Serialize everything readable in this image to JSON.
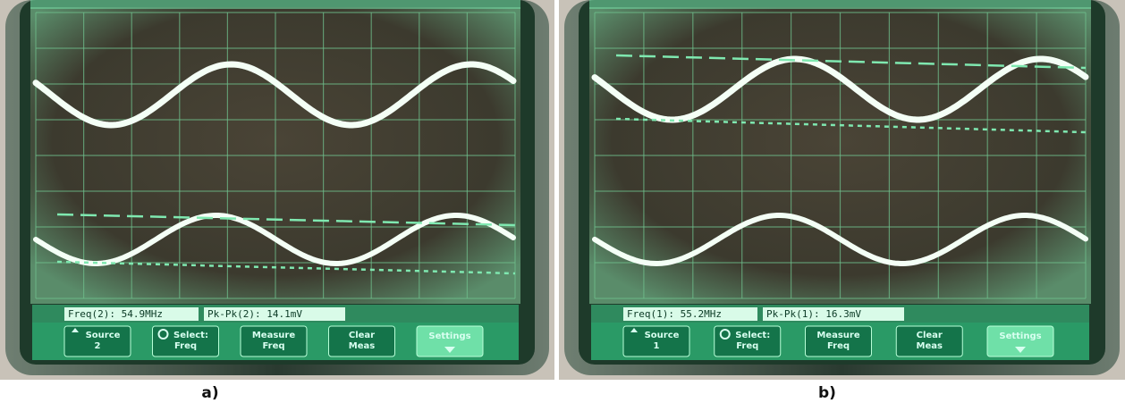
{
  "panels": [
    {
      "caption": "a)",
      "measurements": [
        "Freq(2): 54.9MHz",
        "Pk-Pk(2): 14.1mV"
      ],
      "softkeys": [
        [
          "Source",
          "2"
        ],
        [
          "Select:",
          "Freq"
        ],
        [
          "Measure",
          "Freq"
        ],
        [
          "Clear",
          "Meas"
        ],
        [
          "Settings"
        ]
      ]
    },
    {
      "caption": "b)",
      "measurements": [
        "Freq(1): 55.2MHz",
        "Pk-Pk(1): 16.3mV"
      ],
      "softkeys": [
        [
          "Source",
          "1"
        ],
        [
          "Select:",
          "Freq"
        ],
        [
          "Measure",
          "Freq"
        ],
        [
          "Clear",
          "Meas"
        ],
        [
          "Settings"
        ]
      ]
    }
  ]
}
